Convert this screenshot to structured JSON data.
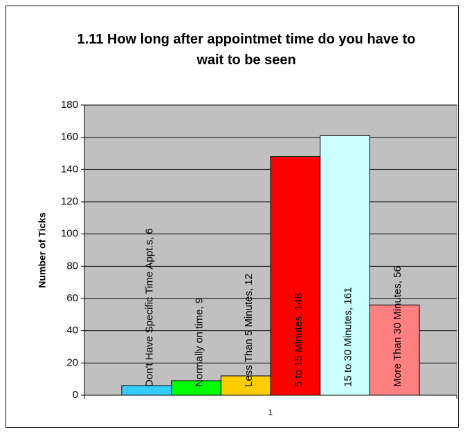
{
  "chart_data": {
    "type": "bar",
    "title": "1.11 How long after appointmet time do you have to wait to be seen",
    "ylabel": "Number of Ticks",
    "categories": [
      "1"
    ],
    "series": [
      {
        "name": "Don't Have Specific Time Appt.s",
        "color": "#33ccff",
        "values": [
          6
        ],
        "value_labels": [
          "Don't Have Specific Time Appt.s, 6"
        ]
      },
      {
        "name": "Normally on time",
        "color": "#00ff00",
        "values": [
          9
        ],
        "value_labels": [
          "Normally on time, 9"
        ]
      },
      {
        "name": "Less Than 5 Minutes",
        "color": "#ffcc00",
        "values": [
          12
        ],
        "value_labels": [
          "Less Than 5 Minutes, 12"
        ]
      },
      {
        "name": "5 to 15 Minutes",
        "color": "#ff0000",
        "values": [
          148
        ],
        "value_labels": [
          "5 to 15 Minutes, 148"
        ]
      },
      {
        "name": "15 to 30 Minutes",
        "color": "#ccffff",
        "values": [
          161
        ],
        "value_labels": [
          "15 to 30 Minutes, 161"
        ]
      },
      {
        "name": "More Than 30 Minutes",
        "color": "#ff8080",
        "values": [
          56
        ],
        "value_labels": [
          "More Than 30 Minutes, 56"
        ]
      }
    ],
    "ylim": [
      0,
      180
    ],
    "yticks": [
      0,
      20,
      40,
      60,
      80,
      100,
      120,
      140,
      160,
      180
    ],
    "grid": true
  }
}
